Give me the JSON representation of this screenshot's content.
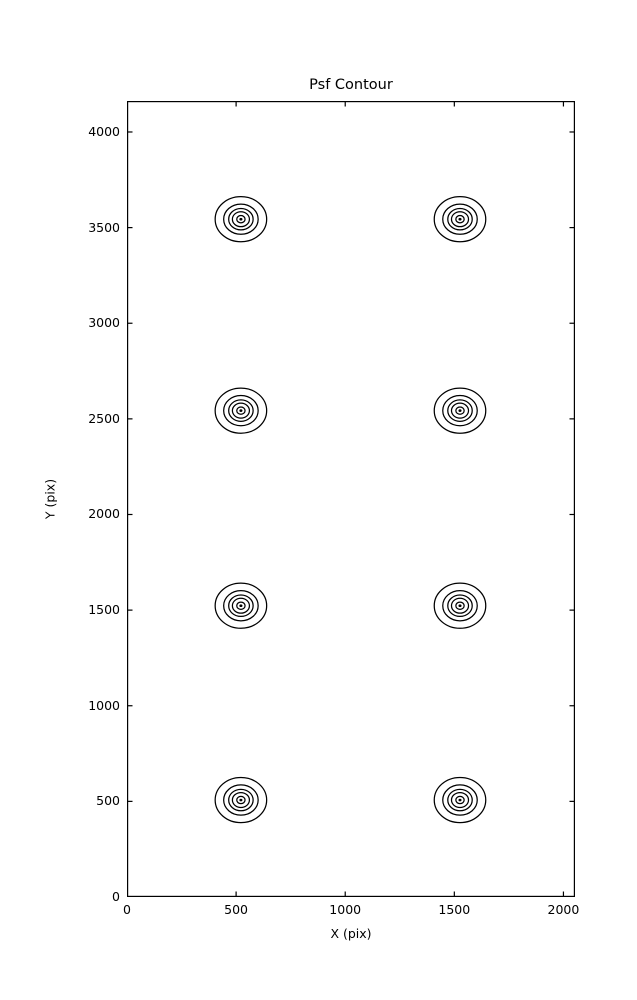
{
  "figure": {
    "title": "Psf Contour",
    "xlabel": "X (pix)",
    "ylabel": "Y (pix)"
  },
  "chart_data": {
    "type": "contour",
    "title": "Psf Contour",
    "xlabel": "X (pix)",
    "ylabel": "Y (pix)",
    "xlim": [
      0,
      2053
    ],
    "ylim": [
      0,
      4162
    ],
    "xticks": [
      0,
      500,
      1000,
      1500,
      2000
    ],
    "yticks": [
      0,
      500,
      1000,
      1500,
      2000,
      2500,
      3000,
      3500,
      4000
    ],
    "grid": false,
    "legend": false,
    "tick_direction": "in",
    "line_color": "#000000",
    "background_color": "#ffffff",
    "psf_centers": [
      {
        "x": 522,
        "y": 507
      },
      {
        "x": 1526,
        "y": 507
      },
      {
        "x": 522,
        "y": 1523
      },
      {
        "x": 1526,
        "y": 1523
      },
      {
        "x": 522,
        "y": 2543
      },
      {
        "x": 1526,
        "y": 2543
      },
      {
        "x": 522,
        "y": 3544
      },
      {
        "x": 1526,
        "y": 3544
      }
    ],
    "contour_ring_radii_pix": [
      118,
      79,
      56,
      39,
      19
    ],
    "center_dot_radius_pix": 7
  }
}
